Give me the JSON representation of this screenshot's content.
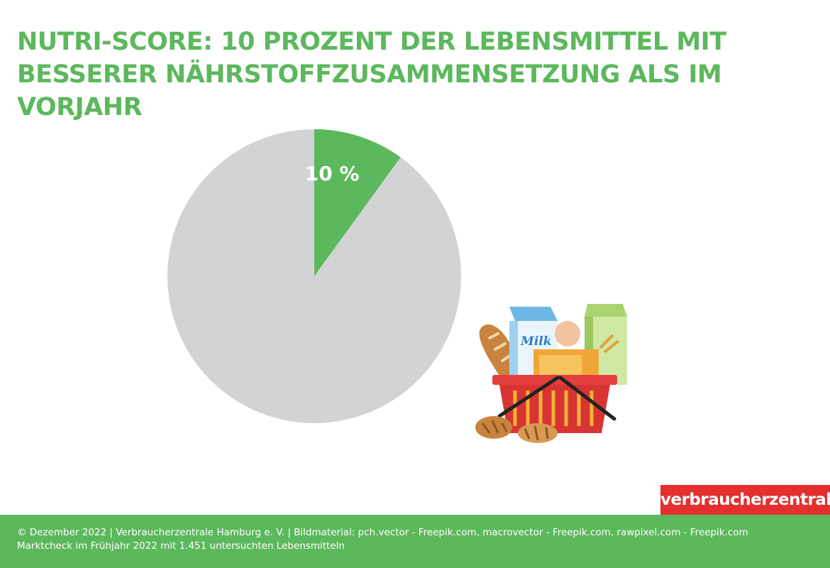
{
  "title": "NUTRI-SCORE: 10 PROZENT DER LEBENSMITTEL MIT BESSERER NÄHRSTOFFZUSAMMENSETZUNG ALS IM VORJAHR",
  "chart_data": {
    "type": "pie",
    "slices": [
      {
        "value": 10,
        "label": "10 %",
        "color": "#5cb85c"
      },
      {
        "value": 90,
        "label": "",
        "color": "#d2d3d5"
      }
    ]
  },
  "brand": {
    "logo_text": "verbraucherzentrale",
    "accent": "#5cb85c",
    "logo_color": "#e3302f"
  },
  "footer": {
    "line1": "© Dezember 2022 | Verbraucherzentrale Hamburg e. V. | Bildmaterial: pch.vector - Freepik.com, macrovector - Freepik.com, rawpixel.com - Freepik.com",
    "line2": "Marktcheck im Frühjahr 2022 mit 1.451 untersuchten Lebensmitteln"
  },
  "illustration": {
    "icon": "shopping-basket-icon",
    "milk_label": "Milk"
  }
}
